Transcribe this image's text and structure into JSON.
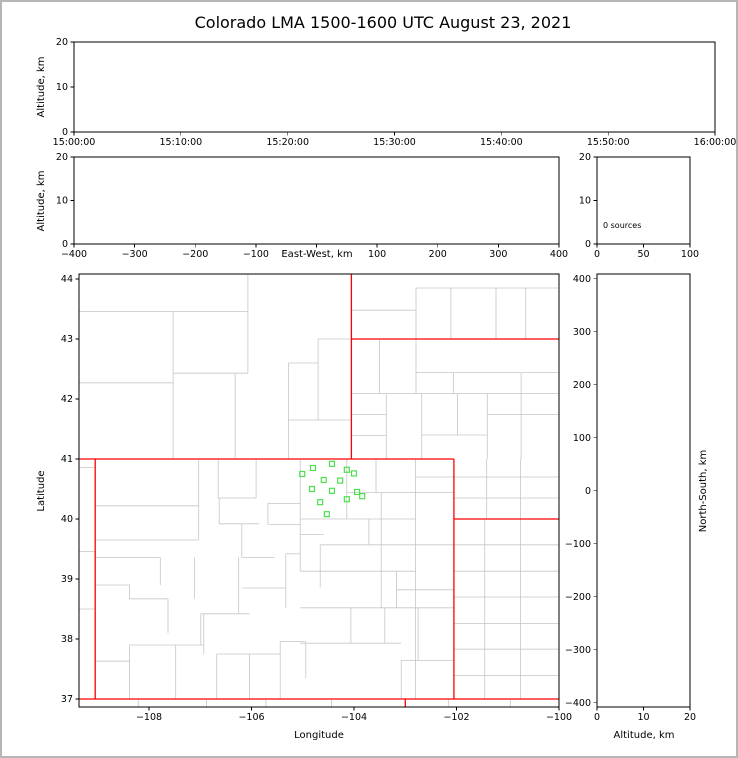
{
  "title": "Colorado LMA 1500-1600 UTC August 23, 2021",
  "labels": {
    "altitude_km": "Altitude, km",
    "east_west": "East-West, km",
    "north_south": "North-South, km",
    "latitude": "Latitude",
    "longitude": "Longitude",
    "sources": "0 sources"
  },
  "colors": {
    "axes": "#000000",
    "text": "#000000",
    "state_border": "#ff0000",
    "county_border": "#c6c6c6",
    "station_marker": "#4be04b",
    "background": "#ffffff",
    "outer_border": "#b6b6b6"
  },
  "chart_data": [
    {
      "id": "time_height",
      "type": "scatter",
      "x_range": [
        0,
        3600
      ],
      "x_ticks": [
        0,
        600,
        1200,
        1800,
        2400,
        3000,
        3600
      ],
      "x_tick_labels": [
        "15:00:00",
        "15:10:00",
        "15:20:00",
        "15:30:00",
        "15:40:00",
        "15:50:00",
        "16:00:00"
      ],
      "ylabel": "Altitude, km",
      "y_range": [
        0,
        20
      ],
      "y_ticks": [
        0,
        10,
        20
      ],
      "y_tick_labels": [
        "0",
        "10",
        "20"
      ],
      "points": []
    },
    {
      "id": "ew_height",
      "type": "scatter",
      "xlabel": "East-West, km",
      "x_range": [
        -400,
        400
      ],
      "x_ticks": [
        -400,
        -300,
        -200,
        -100,
        0,
        100,
        200,
        300,
        400
      ],
      "x_tick_labels": [
        "−400",
        "−300",
        "−200",
        "−100",
        "",
        "100",
        "200",
        "300",
        "400"
      ],
      "ylabel": "Altitude, km",
      "y_range": [
        0,
        20
      ],
      "y_ticks": [
        0,
        10,
        20
      ],
      "y_tick_labels": [
        "0",
        "10",
        "20"
      ],
      "points": []
    },
    {
      "id": "src_hist",
      "type": "line",
      "annotation": "0 sources",
      "x_range": [
        0,
        100
      ],
      "x_ticks": [
        0,
        50,
        100
      ],
      "x_tick_labels": [
        "0",
        "50",
        "100"
      ],
      "y_range": [
        0,
        20
      ],
      "y_ticks": [
        0,
        10,
        20
      ],
      "y_tick_labels": [
        "0",
        "10",
        "20"
      ],
      "points": []
    },
    {
      "id": "map",
      "type": "scatter",
      "xlabel": "Longitude",
      "x_range": [
        -109.366,
        -100.0
      ],
      "x_ticks": [
        -108,
        -106,
        -104,
        -102,
        -100
      ],
      "x_tick_labels": [
        "−108",
        "−106",
        "−104",
        "−102",
        "−100"
      ],
      "ylabel": "Latitude",
      "y_range": [
        36.867,
        44.083
      ],
      "y_ticks": [
        37,
        38,
        39,
        40,
        41,
        42,
        43,
        44
      ],
      "y_tick_labels": [
        "37",
        "38",
        "39",
        "40",
        "41",
        "42",
        "43",
        "44"
      ],
      "stations_lonlat": [
        [
          -104.43,
          40.92
        ],
        [
          -104.8,
          40.85
        ],
        [
          -104.14,
          40.82
        ],
        [
          -104.0,
          40.76
        ],
        [
          -105.01,
          40.75
        ],
        [
          -104.59,
          40.65
        ],
        [
          -104.27,
          40.64
        ],
        [
          -104.82,
          40.5
        ],
        [
          -104.43,
          40.47
        ],
        [
          -103.94,
          40.45
        ],
        [
          -103.84,
          40.38
        ],
        [
          -104.14,
          40.33
        ],
        [
          -104.66,
          40.28
        ],
        [
          -104.53,
          40.08
        ]
      ],
      "state_borders": [
        [
          -109.37,
          41.0,
          -102.05,
          41.0
        ],
        [
          -109.37,
          37.0,
          -100.0,
          37.0
        ],
        [
          -109.05,
          37.0,
          -109.05,
          41.0
        ],
        [
          -102.05,
          37.0,
          -102.05,
          41.0
        ],
        [
          -104.05,
          41.0,
          -104.05,
          44.08
        ],
        [
          -104.05,
          43.0,
          -100.0,
          43.0
        ],
        [
          -102.05,
          40.0,
          -100.0,
          40.0
        ],
        [
          -103.0,
          36.87,
          -103.0,
          37.0
        ]
      ],
      "county_borders": [
        [
          -107.53,
          41.0,
          -107.53,
          43.46
        ],
        [
          -109.37,
          42.27,
          -107.53,
          42.27
        ],
        [
          -106.32,
          41.0,
          -106.32,
          42.43
        ],
        [
          -107.53,
          42.43,
          -106.07,
          42.43
        ],
        [
          -106.07,
          42.43,
          -106.07,
          44.08
        ],
        [
          -105.28,
          41.0,
          -105.28,
          42.6
        ],
        [
          -105.28,
          41.65,
          -104.05,
          41.65
        ],
        [
          -104.7,
          41.65,
          -104.7,
          43.0
        ],
        [
          -105.28,
          42.6,
          -104.7,
          42.6
        ],
        [
          -104.7,
          43.0,
          -104.05,
          43.0
        ],
        [
          -109.37,
          43.46,
          -106.07,
          43.46
        ],
        [
          -102.79,
          43.0,
          -102.79,
          43.85
        ],
        [
          -102.11,
          43.0,
          -102.11,
          43.85
        ],
        [
          -101.23,
          43.0,
          -101.23,
          43.85
        ],
        [
          -104.05,
          43.48,
          -102.79,
          43.48
        ],
        [
          -102.79,
          43.85,
          -100.0,
          43.85
        ],
        [
          -100.65,
          43.0,
          -100.65,
          43.85
        ],
        [
          -103.37,
          41.0,
          -103.37,
          42.09
        ],
        [
          -104.05,
          41.39,
          -103.37,
          41.39
        ],
        [
          -104.05,
          41.74,
          -103.37,
          41.74
        ],
        [
          -104.05,
          42.09,
          -100.0,
          42.09
        ],
        [
          -103.5,
          42.09,
          -103.5,
          43.0
        ],
        [
          -102.68,
          41.0,
          -102.68,
          42.09
        ],
        [
          -102.79,
          42.09,
          -102.79,
          43.0
        ],
        [
          -102.68,
          41.4,
          -101.4,
          41.4
        ],
        [
          -101.98,
          41.4,
          -101.98,
          42.09
        ],
        [
          -101.4,
          41.0,
          -101.4,
          42.09
        ],
        [
          -102.79,
          42.44,
          -100.0,
          42.44
        ],
        [
          -102.06,
          42.09,
          -102.06,
          42.44
        ],
        [
          -100.74,
          41.0,
          -100.74,
          42.44
        ],
        [
          -101.4,
          41.74,
          -100.0,
          41.74
        ],
        [
          -101.41,
          40.0,
          -101.41,
          41.0
        ],
        [
          -100.75,
          40.0,
          -100.75,
          41.0
        ],
        [
          -102.05,
          40.35,
          -100.0,
          40.35
        ],
        [
          -102.05,
          40.7,
          -100.0,
          40.7
        ],
        [
          -101.45,
          37.0,
          -101.45,
          40.0
        ],
        [
          -100.75,
          37.0,
          -100.75,
          40.0
        ],
        [
          -102.05,
          39.57,
          -100.0,
          39.57
        ],
        [
          -102.05,
          39.13,
          -100.0,
          39.13
        ],
        [
          -102.05,
          38.7,
          -100.0,
          38.7
        ],
        [
          -102.05,
          38.26,
          -100.0,
          38.26
        ],
        [
          -102.05,
          37.83,
          -100.0,
          37.83
        ],
        [
          -102.05,
          37.39,
          -100.0,
          37.39
        ],
        [
          -102.16,
          37.0,
          -102.16,
          36.87
        ],
        [
          -100.95,
          37.0,
          -100.95,
          36.87
        ],
        [
          -104.44,
          37.0,
          -104.44,
          36.87
        ],
        [
          -105.72,
          37.0,
          -105.72,
          36.87
        ],
        [
          -106.88,
          37.0,
          -106.88,
          36.87
        ],
        [
          -108.21,
          37.0,
          -108.21,
          36.87
        ],
        [
          -109.37,
          40.86,
          -109.05,
          40.86
        ],
        [
          -109.37,
          39.46,
          -109.05,
          39.46
        ],
        [
          -109.37,
          38.5,
          -109.05,
          38.5
        ],
        [
          -102.8,
          37.0,
          -102.8,
          41.0
        ],
        [
          -104.14,
          40.0,
          -104.14,
          41.0
        ],
        [
          -103.57,
          40.44,
          -103.57,
          41.0
        ],
        [
          -103.47,
          38.52,
          -103.47,
          40.44
        ],
        [
          -102.8,
          40.7,
          -102.05,
          40.7
        ],
        [
          -104.14,
          40.44,
          -102.05,
          40.44
        ],
        [
          -105.05,
          40.0,
          -102.8,
          40.0
        ],
        [
          -105.05,
          39.13,
          -105.05,
          41.0
        ],
        [
          -105.05,
          39.74,
          -104.59,
          39.74
        ],
        [
          -105.68,
          39.91,
          -105.05,
          39.91
        ],
        [
          -104.66,
          38.86,
          -104.66,
          39.57
        ],
        [
          -104.66,
          39.57,
          -102.05,
          39.57
        ],
        [
          -105.05,
          39.13,
          -102.8,
          39.13
        ],
        [
          -103.17,
          38.82,
          -102.05,
          38.82
        ],
        [
          -103.17,
          38.52,
          -103.17,
          39.13
        ],
        [
          -105.05,
          38.52,
          -102.05,
          38.52
        ],
        [
          -104.06,
          37.93,
          -104.06,
          38.52
        ],
        [
          -105.05,
          37.93,
          -103.08,
          37.93
        ],
        [
          -103.08,
          37.64,
          -102.05,
          37.64
        ],
        [
          -103.4,
          37.93,
          -103.4,
          38.52
        ],
        [
          -103.08,
          37.0,
          -103.08,
          37.64
        ],
        [
          -102.75,
          37.64,
          -102.75,
          38.52
        ],
        [
          -104.94,
          37.35,
          -104.94,
          37.93
        ],
        [
          -105.68,
          39.91,
          -105.68,
          40.26
        ],
        [
          -105.68,
          40.26,
          -105.05,
          40.26
        ],
        [
          -103.71,
          39.57,
          -103.71,
          40.0
        ],
        [
          -109.05,
          40.22,
          -107.03,
          40.22
        ],
        [
          -107.03,
          39.65,
          -107.03,
          41.0
        ],
        [
          -109.05,
          39.65,
          -107.03,
          39.65
        ],
        [
          -109.05,
          39.36,
          -107.78,
          39.36
        ],
        [
          -107.78,
          38.9,
          -107.78,
          39.36
        ],
        [
          -109.05,
          38.9,
          -108.38,
          38.9,
          -108.38,
          38.67,
          -107.63,
          38.67
        ],
        [
          -107.63,
          38.1,
          -107.63,
          38.67
        ],
        [
          -106.99,
          38.42,
          -106.04,
          38.42
        ],
        [
          -106.25,
          38.42,
          -106.25,
          39.36
        ],
        [
          -106.19,
          39.36,
          -106.19,
          39.92
        ],
        [
          -106.63,
          39.92,
          -105.85,
          39.92
        ],
        [
          -106.63,
          39.92,
          -106.63,
          40.35
        ],
        [
          -106.65,
          40.35,
          -105.91,
          40.35
        ],
        [
          -106.65,
          40.35,
          -106.65,
          41.0
        ],
        [
          -105.91,
          40.35,
          -105.91,
          41.0
        ],
        [
          -106.18,
          38.85,
          -105.33,
          38.85
        ],
        [
          -105.33,
          38.52,
          -105.33,
          39.42
        ],
        [
          -105.33,
          39.42,
          -105.05,
          39.42
        ],
        [
          -106.04,
          37.0,
          -106.04,
          37.75
        ],
        [
          -106.68,
          37.75,
          -105.44,
          37.75
        ],
        [
          -105.44,
          37.0,
          -105.44,
          37.96
        ],
        [
          -105.44,
          37.96,
          -104.94,
          37.96
        ],
        [
          -106.93,
          37.75,
          -106.93,
          38.42
        ],
        [
          -107.48,
          37.0,
          -107.48,
          37.9
        ],
        [
          -108.38,
          37.0,
          -108.38,
          37.9
        ],
        [
          -109.05,
          37.63,
          -108.38,
          37.63
        ],
        [
          -108.38,
          37.9,
          -106.93,
          37.9
        ],
        [
          -107.11,
          38.67,
          -107.11,
          39.36
        ],
        [
          -106.99,
          37.9,
          -106.99,
          38.42
        ],
        [
          -106.68,
          37.0,
          -106.68,
          37.75
        ],
        [
          -106.19,
          39.36,
          -105.55,
          39.36
        ]
      ]
    },
    {
      "id": "ns_height",
      "type": "scatter",
      "xlabel": "Altitude, km",
      "x_range": [
        0,
        20
      ],
      "x_ticks": [
        0,
        10,
        20
      ],
      "x_tick_labels": [
        "0",
        "10",
        "20"
      ],
      "ylabel": "North-South, km",
      "y_range": [
        -408,
        409
      ],
      "y_ticks": [
        -400,
        -300,
        -200,
        -100,
        0,
        100,
        200,
        300,
        400
      ],
      "y_tick_labels": [
        "−400",
        "−300",
        "−200",
        "−100",
        "0",
        "100",
        "200",
        "300",
        "400"
      ],
      "points": []
    }
  ]
}
